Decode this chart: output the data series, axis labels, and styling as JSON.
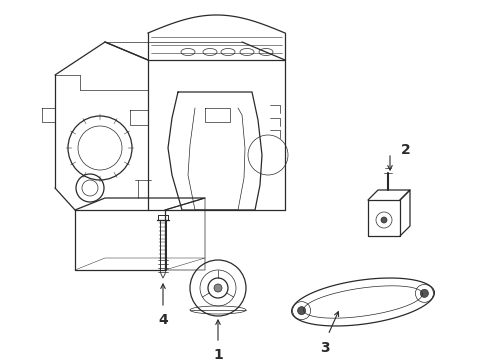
{
  "background_color": "#ffffff",
  "line_color": "#2a2a2a",
  "lw_main": 0.9,
  "lw_thin": 0.5,
  "label_fontsize": 10,
  "figsize": [
    4.9,
    3.6
  ],
  "dpi": 100,
  "xlim": [
    0,
    490
  ],
  "ylim": [
    0,
    360
  ]
}
